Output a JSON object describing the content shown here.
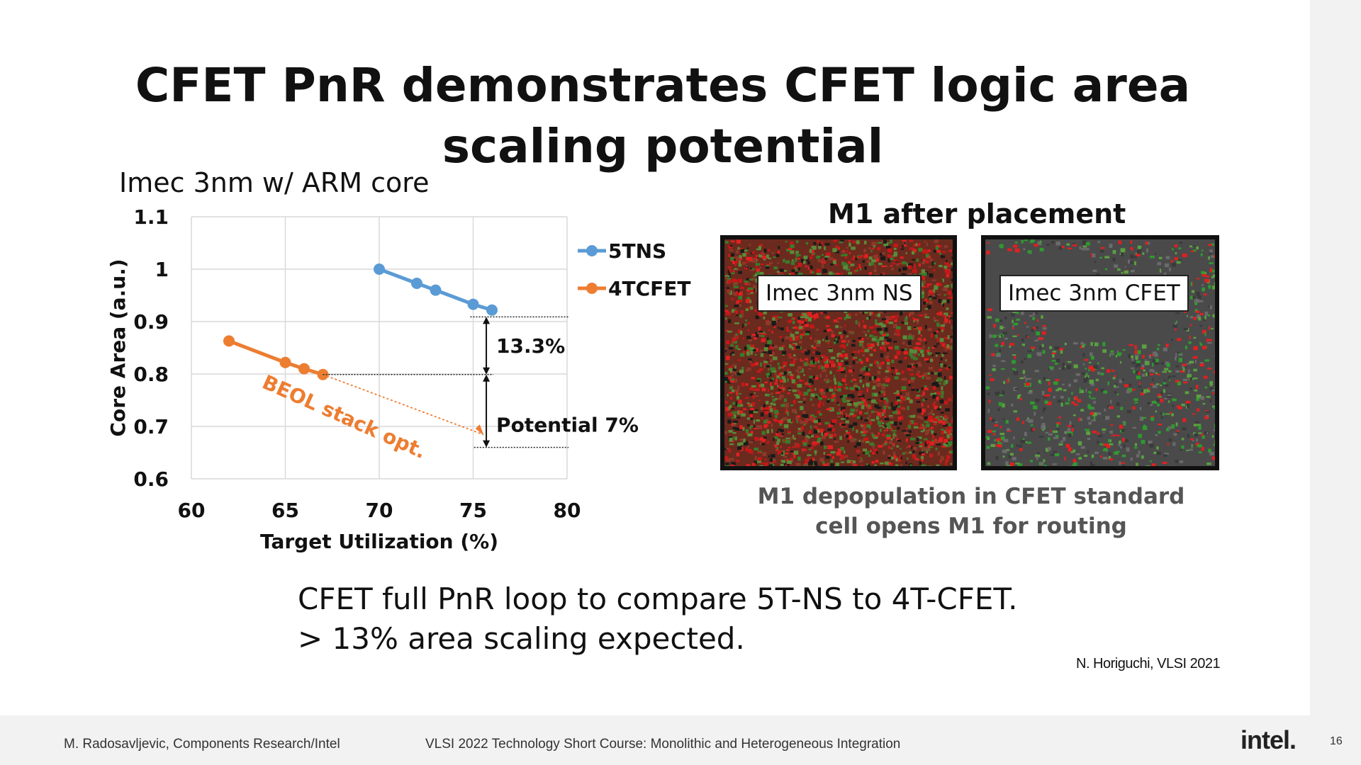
{
  "slide": {
    "title": "CFET PnR demonstrates CFET logic area scaling potential",
    "chart_heading": "Imec 3nm w/ ARM core",
    "photo_heading": "M1 after placement",
    "panels": [
      {
        "label": "Imec 3nm NS",
        "fill": "#6b2a1e"
      },
      {
        "label": "Imec 3nm CFET",
        "fill": "#4a4a4a"
      }
    ],
    "photo_caption": "M1 depopulation in CFET standard cell opens M1 for routing",
    "bottom_line1": "CFET full PnR loop to compare 5T-NS to 4T-CFET.",
    "bottom_line2": "> 13% area scaling expected.",
    "citation": "N. Horiguchi, VLSI 2021"
  },
  "footer": {
    "author": "M. Radosavljevic, Components Research/Intel",
    "course": "VLSI 2022 Technology Short Course: Monolithic and Heterogeneous Integration",
    "logo": "intel.",
    "page": "16"
  },
  "chart_data": {
    "type": "line",
    "xlabel": "Target Utilization (%)",
    "ylabel": "Core Area (a.u.)",
    "xlim": [
      60,
      80
    ],
    "ylim": [
      0.6,
      1.1
    ],
    "xticks": [
      60,
      65,
      70,
      75,
      80
    ],
    "yticks": [
      0.6,
      0.7,
      0.8,
      0.9,
      1,
      1.1
    ],
    "ytick_labels": [
      "0.6",
      "0.7",
      "0.8",
      "0.9",
      "1",
      "1.1"
    ],
    "grid": true,
    "legend_position": "right",
    "series": [
      {
        "name": "5TNS",
        "color": "#5b9bd5",
        "x": [
          70,
          72,
          73,
          75,
          76
        ],
        "y": [
          1.0,
          0.973,
          0.96,
          0.933,
          0.922
        ]
      },
      {
        "name": "4TCFET",
        "color": "#ed7d31",
        "x": [
          62,
          65,
          66,
          67
        ],
        "y": [
          0.863,
          0.822,
          0.81,
          0.799
        ]
      }
    ],
    "projection": {
      "from": [
        67,
        0.799
      ],
      "to": [
        75.5,
        0.685
      ],
      "label": "BEOL stack opt.",
      "color": "#ed7d31"
    },
    "annotations": [
      {
        "label": "13.3%",
        "y_top": 0.909,
        "y_bottom": 0.799
      },
      {
        "label": "Potential 7%",
        "y_top": 0.799,
        "y_bottom": 0.66
      }
    ]
  }
}
